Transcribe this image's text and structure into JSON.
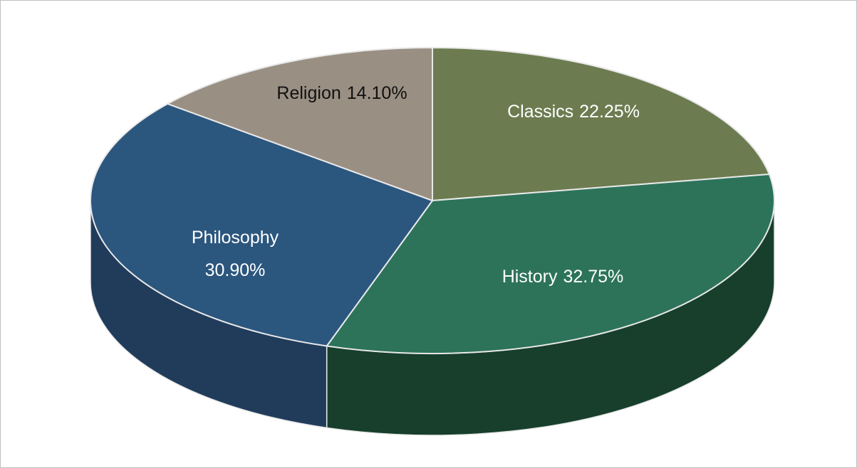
{
  "chart_data": {
    "type": "pie",
    "categories": [
      "Classics",
      "History",
      "Philosophy",
      "Religion"
    ],
    "values": [
      22.25,
      32.75,
      30.9,
      14.1
    ],
    "value_labels": [
      "22.25%",
      "32.75%",
      "30.90%",
      "14.10%"
    ],
    "colors": [
      "#6c7c50",
      "#2c735a",
      "#2b567e",
      "#9a8f83"
    ],
    "side_colors": [
      "#3f4a2c",
      "#173f2c",
      "#213c5b",
      "#5d554c"
    ]
  }
}
